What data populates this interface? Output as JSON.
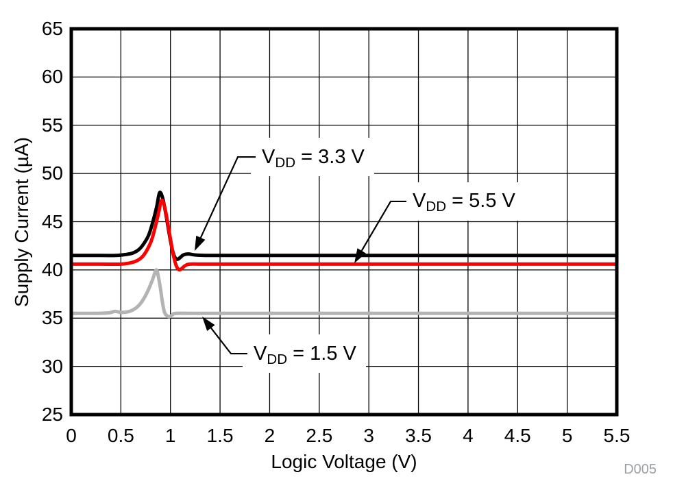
{
  "figure": {
    "background": "#ffffff",
    "watermark": "D005",
    "watermark_color": "#9aa0a4"
  },
  "chart_data": {
    "type": "line",
    "title": "",
    "xlabel": "Logic Voltage (V)",
    "ylabel": "Supply Current (µA)",
    "xlim": [
      0,
      5.5
    ],
    "ylim": [
      25,
      65
    ],
    "x_ticks": [
      0,
      0.5,
      1,
      1.5,
      2,
      2.5,
      3,
      3.5,
      4,
      4.5,
      5,
      5.5
    ],
    "x_tick_labels": [
      "0",
      "0.5",
      "1",
      "1.5",
      "2",
      "2.5",
      "3",
      "3.5",
      "4",
      "4.5",
      "5",
      "5.5"
    ],
    "y_ticks": [
      25,
      30,
      35,
      40,
      45,
      50,
      55,
      60,
      65
    ],
    "y_tick_labels": [
      "25",
      "30",
      "35",
      "40",
      "45",
      "50",
      "55",
      "60",
      "65"
    ],
    "grid": {
      "x_step": 0.5,
      "y_step": 5,
      "line_color": "#000000",
      "line_width": 1.3,
      "frame_color": "#000000",
      "frame_width": 5
    },
    "legend": "none (curves labeled by arrow annotations)",
    "series": [
      {
        "name": "VDD = 1.5 V",
        "color": "#b3b3b3",
        "line_width": 5,
        "points": [
          [
            0,
            35.5
          ],
          [
            0.25,
            35.5
          ],
          [
            0.38,
            35.55
          ],
          [
            0.44,
            35.7
          ],
          [
            0.5,
            35.6
          ],
          [
            0.57,
            35.65
          ],
          [
            0.63,
            35.9
          ],
          [
            0.68,
            36.3
          ],
          [
            0.73,
            37.0
          ],
          [
            0.78,
            38.0
          ],
          [
            0.82,
            39.0
          ],
          [
            0.857,
            40.0
          ],
          [
            0.88,
            39.2
          ],
          [
            0.9,
            38.0
          ],
          [
            0.92,
            36.6
          ],
          [
            0.94,
            35.6
          ],
          [
            0.965,
            35.25
          ],
          [
            0.99,
            35.15
          ],
          [
            1.02,
            35.35
          ],
          [
            1.06,
            35.5
          ],
          [
            1.3,
            35.5
          ],
          [
            2.5,
            35.5
          ],
          [
            3.5,
            35.5
          ],
          [
            4.5,
            35.5
          ],
          [
            5.5,
            35.5
          ]
        ]
      },
      {
        "name": "VDD = 3.3 V",
        "color": "#000000",
        "line_width": 5,
        "points": [
          [
            0,
            41.5
          ],
          [
            0.3,
            41.5
          ],
          [
            0.45,
            41.5
          ],
          [
            0.55,
            41.6
          ],
          [
            0.62,
            41.75
          ],
          [
            0.68,
            42.1
          ],
          [
            0.73,
            42.7
          ],
          [
            0.78,
            43.6
          ],
          [
            0.82,
            44.9
          ],
          [
            0.86,
            46.5
          ],
          [
            0.89,
            48.0
          ],
          [
            0.92,
            47.5
          ],
          [
            0.95,
            46.0
          ],
          [
            0.98,
            44.2
          ],
          [
            1.01,
            42.5
          ],
          [
            1.04,
            41.4
          ],
          [
            1.07,
            41.1
          ],
          [
            1.1,
            41.3
          ],
          [
            1.13,
            41.55
          ],
          [
            1.18,
            41.65
          ],
          [
            1.25,
            41.55
          ],
          [
            1.35,
            41.5
          ],
          [
            1.6,
            41.5
          ],
          [
            2.5,
            41.5
          ],
          [
            3.5,
            41.5
          ],
          [
            4.5,
            41.5
          ],
          [
            5.5,
            41.5
          ]
        ]
      },
      {
        "name": "VDD = 5.5 V",
        "color": "#ff0000",
        "line_width": 5,
        "points": [
          [
            0,
            40.6
          ],
          [
            0.3,
            40.6
          ],
          [
            0.5,
            40.6
          ],
          [
            0.58,
            40.7
          ],
          [
            0.65,
            40.9
          ],
          [
            0.71,
            41.3
          ],
          [
            0.76,
            42.0
          ],
          [
            0.81,
            43.1
          ],
          [
            0.85,
            44.6
          ],
          [
            0.88,
            45.9
          ],
          [
            0.91,
            47.2
          ],
          [
            0.94,
            46.6
          ],
          [
            0.97,
            45.0
          ],
          [
            1.0,
            43.2
          ],
          [
            1.03,
            41.5
          ],
          [
            1.06,
            40.4
          ],
          [
            1.09,
            40.0
          ],
          [
            1.12,
            40.2
          ],
          [
            1.15,
            40.45
          ],
          [
            1.2,
            40.6
          ],
          [
            1.4,
            40.6
          ],
          [
            2.5,
            40.6
          ],
          [
            3.5,
            40.6
          ],
          [
            4.5,
            40.6
          ],
          [
            5.5,
            40.6
          ]
        ]
      }
    ],
    "annotations": [
      {
        "id": "vdd-3p3",
        "var": "V",
        "sub": "DD",
        "rest": " = 3.3 V",
        "text": "VDD = 3.3 V",
        "label_xy": [
          1.921,
          51.71
        ],
        "elbow_xy": [
          1.679,
          51.71
        ],
        "tip_xy": [
          1.244,
          41.98
        ]
      },
      {
        "id": "vdd-5p5",
        "var": "V",
        "sub": "DD",
        "rest": " = 5.5 V",
        "text": "VDD = 5.5 V",
        "label_xy": [
          3.441,
          47.1
        ],
        "elbow_xy": [
          3.22,
          47.1
        ],
        "tip_xy": [
          2.854,
          40.7
        ]
      },
      {
        "id": "vdd-1p5",
        "var": "V",
        "sub": "DD",
        "rest": " = 1.5 V",
        "text": "VDD = 1.5 V",
        "label_xy": [
          1.838,
          31.32
        ],
        "elbow_xy": [
          1.61,
          31.32
        ],
        "tip_xy": [
          1.32,
          35.16
        ]
      }
    ]
  }
}
